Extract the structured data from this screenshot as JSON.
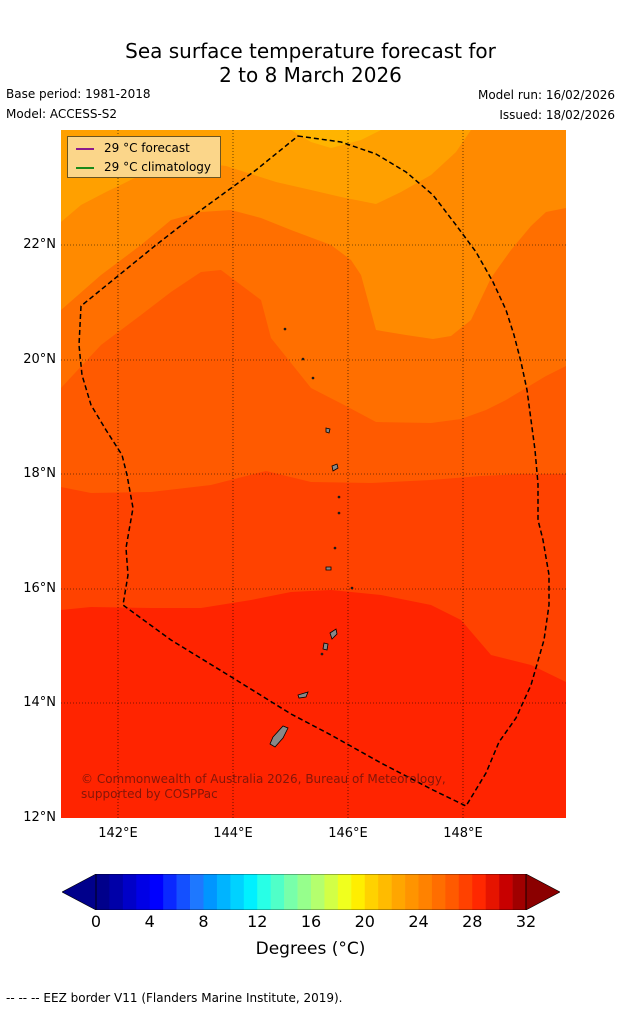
{
  "title_line1": "Sea surface temperature forecast for",
  "title_line2": "2 to 8 March 2026",
  "base_period": "Base period: 1981-2018",
  "model": "Model: ACCESS-S2",
  "model_run": "Model run: 16/02/2026",
  "issued": "Issued: 18/02/2026",
  "legend": {
    "forecast_label": "29 °C  forecast",
    "forecast_color": "#8b1a8b",
    "climatology_label": "29 °C  climatology",
    "climatology_color": "#1a8a1a"
  },
  "lat_labels": [
    "22°N",
    "20°N",
    "18°N",
    "16°N",
    "14°N",
    "12°N"
  ],
  "lon_labels": [
    "142°E",
    "144°E",
    "146°E",
    "148°E"
  ],
  "copyright": "© Commonwealth of Australia 2026, Bureau of Meteorology, supported by COSPPac",
  "colorbar": {
    "ticks": [
      "0",
      "4",
      "8",
      "12",
      "16",
      "20",
      "24",
      "28",
      "32"
    ],
    "label": "Degrees (°C)",
    "colors": [
      "#00008b",
      "#0000a8",
      "#0000c8",
      "#0000e6",
      "#0000ff",
      "#0a28ff",
      "#1450ff",
      "#1e78ff",
      "#0096ff",
      "#00b4ff",
      "#00d2ff",
      "#00f0ff",
      "#28ffe6",
      "#50ffc8",
      "#78ffaa",
      "#96ff8c",
      "#b4ff6e",
      "#d2ff46",
      "#f0ff1e",
      "#ffee00",
      "#ffd200",
      "#ffbb00",
      "#ffa600",
      "#ff9400",
      "#ff8200",
      "#ff6e00",
      "#ff5a00",
      "#ff4100",
      "#ff2800",
      "#e61400",
      "#c80000",
      "#a00000"
    ],
    "under_color": "#00008b",
    "over_color": "#8b0000"
  },
  "footer": "--  --  -- EEZ border V11 (Flanders Marine Institute, 2019)."
}
